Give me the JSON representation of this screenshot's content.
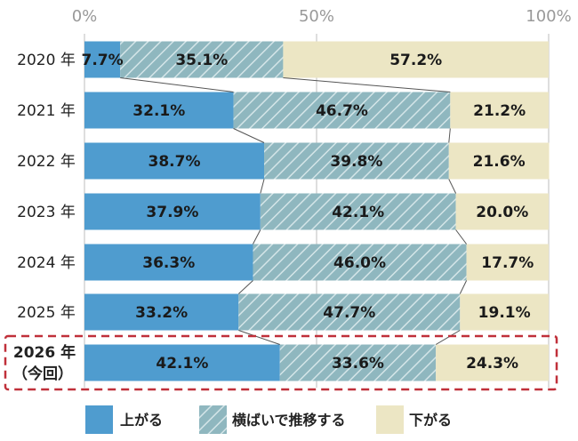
{
  "chart_data": {
    "type": "bar",
    "orientation": "horizontal",
    "stacked": true,
    "percent": true,
    "xlim": [
      0,
      100
    ],
    "x_ticks": [
      "0%",
      "50%",
      "100%"
    ],
    "categories": [
      "2020 年",
      "2021 年",
      "2022 年",
      "2023 年",
      "2024 年",
      "2025 年",
      "2026 年"
    ],
    "highlight_category": {
      "line1": "2026 年",
      "line2": "（今回）"
    },
    "series": [
      {
        "name": "上がる",
        "color": "#4f9ccf",
        "pattern": "solid",
        "values": [
          7.7,
          32.1,
          38.7,
          37.9,
          36.3,
          33.2,
          42.1
        ],
        "labels": [
          "7.7%",
          "32.1%",
          "38.7%",
          "37.9%",
          "36.3%",
          "33.2%",
          "42.1%"
        ]
      },
      {
        "name": "横ばいで推移する",
        "color": "#8fb7bf",
        "pattern": "hatched",
        "values": [
          35.1,
          46.7,
          39.8,
          42.1,
          46.0,
          47.7,
          33.6
        ],
        "labels": [
          "35.1%",
          "46.7%",
          "39.8%",
          "42.1%",
          "46.0%",
          "47.7%",
          "33.6%"
        ]
      },
      {
        "name": "下がる",
        "color": "#ece6c4",
        "pattern": "solid",
        "values": [
          57.2,
          21.2,
          21.6,
          20.0,
          17.7,
          19.1,
          24.3
        ],
        "labels": [
          "57.2%",
          "21.2%",
          "21.6%",
          "20.0%",
          "17.7%",
          "19.1%",
          "24.3%"
        ]
      }
    ],
    "legend_position": "bottom",
    "highlight_color": "#c0303a"
  }
}
